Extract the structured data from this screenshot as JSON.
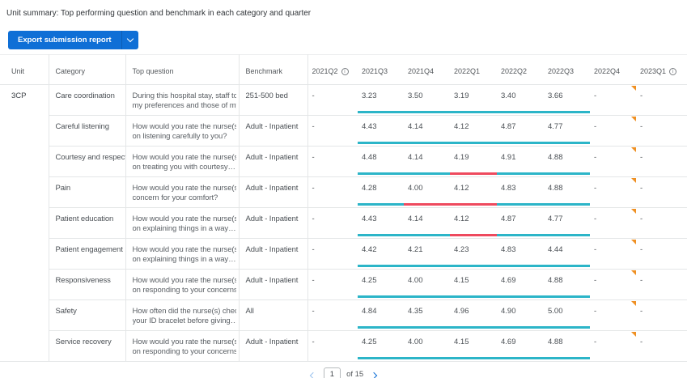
{
  "page_title": "Unit summary: Top performing question and benchmark in each category and quarter",
  "toolbar": {
    "export_label": "Export submission report"
  },
  "icons": {
    "info_glyph": "i"
  },
  "table": {
    "unit": "3CP",
    "columns": [
      {
        "label": "Unit"
      },
      {
        "label": "Category"
      },
      {
        "label": "Top question"
      },
      {
        "label": "Benchmark"
      },
      {
        "label": "2021Q2",
        "info": true
      },
      {
        "label": "2021Q3"
      },
      {
        "label": "2021Q4"
      },
      {
        "label": "2022Q1"
      },
      {
        "label": "2022Q2"
      },
      {
        "label": "2022Q3"
      },
      {
        "label": "2022Q4"
      },
      {
        "label": "2023Q1",
        "info": true
      }
    ],
    "rows": [
      {
        "category": "Care coordination",
        "question_lines": [
          "During this hospital stay, staff took",
          "my preferences and those of my…"
        ],
        "benchmark": "251-500 bed",
        "values": [
          "-",
          "3.23",
          "3.50",
          "3.19",
          "3.40",
          "3.66",
          "-",
          "-"
        ],
        "bar": [
          "teal",
          "teal",
          "teal",
          "teal",
          "teal"
        ],
        "flag": true
      },
      {
        "category": "Careful listening",
        "question_lines": [
          "How would you rate the nurse(s)",
          "on listening carefully to you?"
        ],
        "benchmark": "Adult - Inpatient",
        "values": [
          "-",
          "4.43",
          "4.14",
          "4.12",
          "4.87",
          "4.77",
          "-",
          "-"
        ],
        "bar": [
          "teal",
          "teal",
          "teal",
          "teal",
          "teal"
        ],
        "flag": true
      },
      {
        "category": "Courtesy and respect",
        "question_lines": [
          "How would you rate the nurse(s)",
          "on treating you with courtesy…"
        ],
        "benchmark": "Adult - Inpatient",
        "values": [
          "-",
          "4.48",
          "4.14",
          "4.19",
          "4.91",
          "4.88",
          "-",
          "-"
        ],
        "bar": [
          "teal",
          "teal",
          "red",
          "teal",
          "teal"
        ],
        "flag": true
      },
      {
        "category": "Pain",
        "question_lines": [
          "How would you rate the nurse(s)'s",
          "concern for your comfort?"
        ],
        "benchmark": "Adult - Inpatient",
        "values": [
          "-",
          "4.28",
          "4.00",
          "4.12",
          "4.83",
          "4.88",
          "-",
          "-"
        ],
        "bar": [
          "teal",
          "red",
          "red",
          "teal",
          "teal"
        ],
        "flag": true
      },
      {
        "category": "Patient education",
        "question_lines": [
          "How would you rate the nurse(s)",
          "on explaining things in a way…"
        ],
        "benchmark": "Adult - Inpatient",
        "values": [
          "-",
          "4.43",
          "4.14",
          "4.12",
          "4.87",
          "4.77",
          "-",
          "-"
        ],
        "bar": [
          "teal",
          "teal",
          "red",
          "teal",
          "teal"
        ],
        "flag": true
      },
      {
        "category": "Patient engagement",
        "question_lines": [
          "How would you rate the nurse(s)",
          "on explaining things in a way…"
        ],
        "benchmark": "Adult - Inpatient",
        "values": [
          "-",
          "4.42",
          "4.21",
          "4.23",
          "4.83",
          "4.44",
          "-",
          "-"
        ],
        "bar": [
          "teal",
          "teal",
          "teal",
          "teal",
          "teal"
        ],
        "flag": true
      },
      {
        "category": "Responsiveness",
        "question_lines": [
          "How would you rate the nurse(s)",
          "on responding to your concerns…"
        ],
        "benchmark": "Adult - Inpatient",
        "values": [
          "-",
          "4.25",
          "4.00",
          "4.15",
          "4.69",
          "4.88",
          "-",
          "-"
        ],
        "bar": [
          "teal",
          "teal",
          "teal",
          "teal",
          "teal"
        ],
        "flag": true
      },
      {
        "category": "Safety",
        "question_lines": [
          "How often did the nurse(s) check",
          "your ID bracelet before giving…"
        ],
        "benchmark": "All",
        "values": [
          "-",
          "4.84",
          "4.35",
          "4.96",
          "4.90",
          "5.00",
          "-",
          "-"
        ],
        "bar": [
          "teal",
          "teal",
          "teal",
          "teal",
          "teal"
        ],
        "flag": true
      },
      {
        "category": "Service recovery",
        "question_lines": [
          "How would you rate the nurse(s)",
          "on responding to your concerns…"
        ],
        "benchmark": "Adult - Inpatient",
        "values": [
          "-",
          "4.25",
          "4.00",
          "4.15",
          "4.69",
          "4.88",
          "-",
          "-"
        ],
        "bar": [
          "teal",
          "teal",
          "teal",
          "teal",
          "teal"
        ],
        "flag": true
      }
    ]
  },
  "pagination": {
    "page": "1",
    "of_label": "of 15"
  },
  "colors": {
    "accent_blue": "#0f6fd6",
    "teal": "#2cb5c8",
    "red": "#ee4a5e",
    "orange": "#ef9023"
  }
}
